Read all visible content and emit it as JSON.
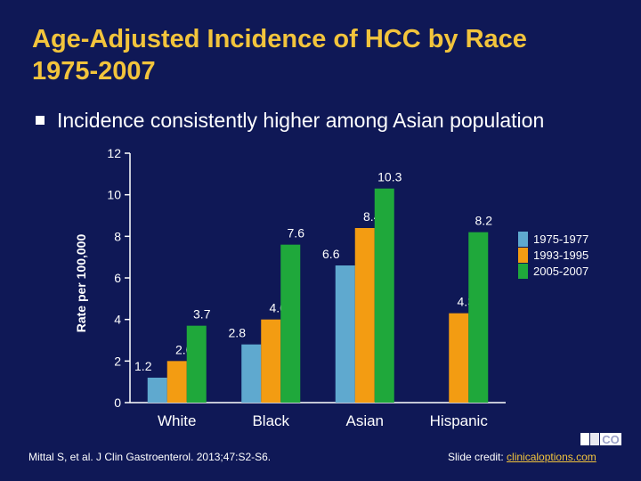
{
  "slide": {
    "title_line1": "Age-Adjusted Incidence of HCC by Race",
    "title_line2": "1975-2007",
    "bullet": "Incidence consistently higher among Asian population",
    "citation": "Mittal S, et al. J Clin Gastroenterol. 2013;47:S2-S6.",
    "credit_label": "Slide credit: ",
    "credit_link": "clinicaloptions.com",
    "logo_text": "CO"
  },
  "chart_data": {
    "type": "bar",
    "categories": [
      "White",
      "Black",
      "Asian",
      "Hispanic"
    ],
    "series": [
      {
        "name": "1975-1977",
        "color": "#5fa9cf",
        "values": [
          1.2,
          2.8,
          6.6,
          null
        ],
        "labels": [
          "1.2",
          "2.8",
          "6.6",
          ""
        ]
      },
      {
        "name": "1993-1995",
        "color": "#f39c12",
        "values": [
          2.0,
          4.0,
          8.4,
          4.3
        ],
        "labels": [
          "2.0",
          "4.0",
          "8.4",
          "4.3"
        ]
      },
      {
        "name": "2005-2007",
        "color": "#1fa83b",
        "values": [
          3.7,
          7.6,
          10.3,
          8.2
        ],
        "labels": [
          "3.7",
          "7.6",
          "10.3",
          "8.2"
        ]
      }
    ],
    "ylabel": "Rate per 100,000",
    "ylim": [
      0,
      12
    ],
    "yticks": [
      0,
      2,
      4,
      6,
      8,
      10,
      12
    ],
    "legend_position": "right",
    "grid": false
  }
}
